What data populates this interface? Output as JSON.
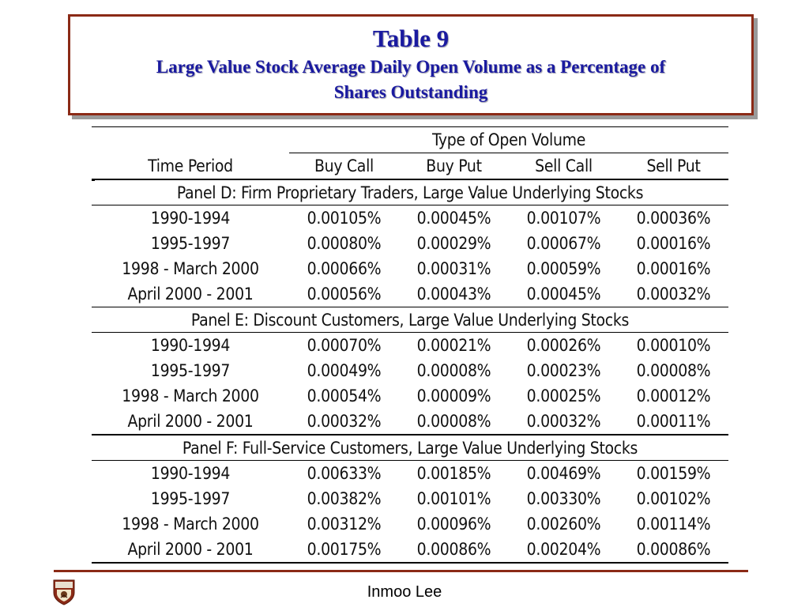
{
  "title": "Table 9",
  "subtitle_line1": "Large Value Stock Average Daily Open Volume as a Percentage of",
  "subtitle_line2": "Shares Outstanding",
  "table": {
    "group_header": "Type of Open Volume",
    "col_period": "Time Period",
    "columns": [
      "Buy Call",
      "Buy Put",
      "Sell Call",
      "Sell Put"
    ],
    "panels": [
      {
        "title": "Panel D:  Firm Proprietary Traders, Large Value Underlying Stocks",
        "rows": [
          {
            "period": "1990-1994",
            "values": [
              "0.00105%",
              "0.00045%",
              "0.00107%",
              "0.00036%"
            ]
          },
          {
            "period": "1995-1997",
            "values": [
              "0.00080%",
              "0.00029%",
              "0.00067%",
              "0.00016%"
            ]
          },
          {
            "period": "1998 - March 2000",
            "values": [
              "0.00066%",
              "0.00031%",
              "0.00059%",
              "0.00016%"
            ]
          },
          {
            "period": "April 2000 - 2001",
            "values": [
              "0.00056%",
              "0.00043%",
              "0.00045%",
              "0.00032%"
            ]
          }
        ]
      },
      {
        "title": "Panel E:  Discount Customers, Large Value Underlying Stocks",
        "rows": [
          {
            "period": "1990-1994",
            "values": [
              "0.00070%",
              "0.00021%",
              "0.00026%",
              "0.00010%"
            ]
          },
          {
            "period": "1995-1997",
            "values": [
              "0.00049%",
              "0.00008%",
              "0.00023%",
              "0.00008%"
            ]
          },
          {
            "period": "1998 - March 2000",
            "values": [
              "0.00054%",
              "0.00009%",
              "0.00025%",
              "0.00012%"
            ]
          },
          {
            "period": "April 2000 - 2001",
            "values": [
              "0.00032%",
              "0.00008%",
              "0.00032%",
              "0.00011%"
            ]
          }
        ]
      },
      {
        "title": "Panel F:  Full-Service Customers, Large Value Underlying Stocks",
        "rows": [
          {
            "period": "1990-1994",
            "values": [
              "0.00633%",
              "0.00185%",
              "0.00469%",
              "0.00159%"
            ]
          },
          {
            "period": "1995-1997",
            "values": [
              "0.00382%",
              "0.00101%",
              "0.00330%",
              "0.00102%"
            ]
          },
          {
            "period": "1998 - March 2000",
            "values": [
              "0.00312%",
              "0.00096%",
              "0.00260%",
              "0.00114%"
            ]
          },
          {
            "period": "April 2000 - 2001",
            "values": [
              "0.00175%",
              "0.00086%",
              "0.00204%",
              "0.00086%"
            ]
          }
        ]
      }
    ]
  },
  "footer": {
    "author": "Inmoo Lee",
    "logo_icon": "university-crest-icon"
  },
  "colors": {
    "title_text": "#1a1aa0",
    "frame": "#8b2a16"
  }
}
